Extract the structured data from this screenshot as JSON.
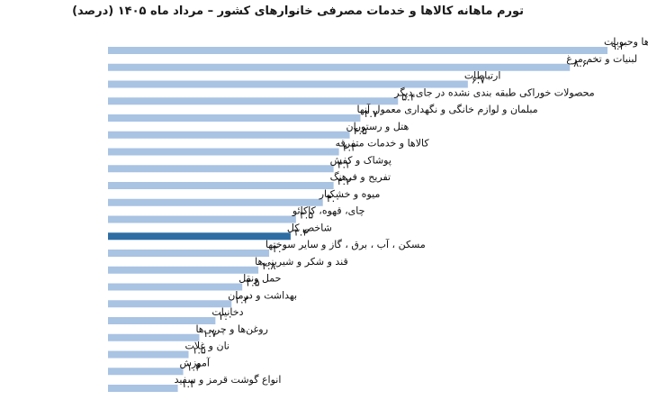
{
  "chart_data": {
    "type": "bar",
    "orientation": "horizontal",
    "title": "تورم ماهانه کالاها و خدمات مصرفی خانوارهای کشور – مرداد ماه ۱۴۰۵ (درصد)",
    "xlabel": "",
    "ylabel": "",
    "xlim": [
      0,
      9.3
    ],
    "grid": false,
    "legend": "none",
    "bar_color": "#a9c3e3",
    "highlight_color": "#2e6da4",
    "categories": [
      "سبزی‌ها وحبوبات",
      "لبنیات و تخم مرغ",
      "ارتباطات",
      "محصولات خوراکی طبقه بندی نشده در جای دیگر",
      "مبلمان و لوازم خانگی و نگهداری معمول آنها",
      "هتل و رستوران",
      "کالاها و خدمات متفرقه",
      "پوشاک و کفش",
      "تفریح و فرهنگ",
      "میوه و خشکبار",
      "چای، قهوه، کاکائو",
      "شاخص کل",
      "مسکن ، آب ، برق ، گاز و سایر سوختها",
      "قند و شکر و شیرینی‌ها",
      "حمل ونقل",
      "بهداشت و درمان",
      "دخانیات",
      "روغن‌ها و چربی‌ها",
      "نان و غلات",
      "آموزش",
      "انواع گوشت قرمز و سفید"
    ],
    "values": [
      9.3,
      8.6,
      6.7,
      5.4,
      4.7,
      4.5,
      4.3,
      4.2,
      4.2,
      4.0,
      3.5,
      3.4,
      3.0,
      2.8,
      2.5,
      2.3,
      2.0,
      1.7,
      1.5,
      1.4,
      1.3
    ],
    "value_labels": [
      "۹.۳",
      "۸.۶",
      "۶.۷",
      "۵.۴",
      "۴.۷",
      "۴.۵",
      "۴.۳",
      "۴.۲",
      "۴.۲",
      "۴.۰",
      "۳.۵",
      "۳.۴",
      "۳.۰",
      "۲.۸",
      "۲.۵",
      "۲.۳",
      "۲.۰",
      "۱.۷",
      "۱.۵",
      "۱.۴",
      "۱.۳"
    ],
    "highlight_index": 11
  }
}
